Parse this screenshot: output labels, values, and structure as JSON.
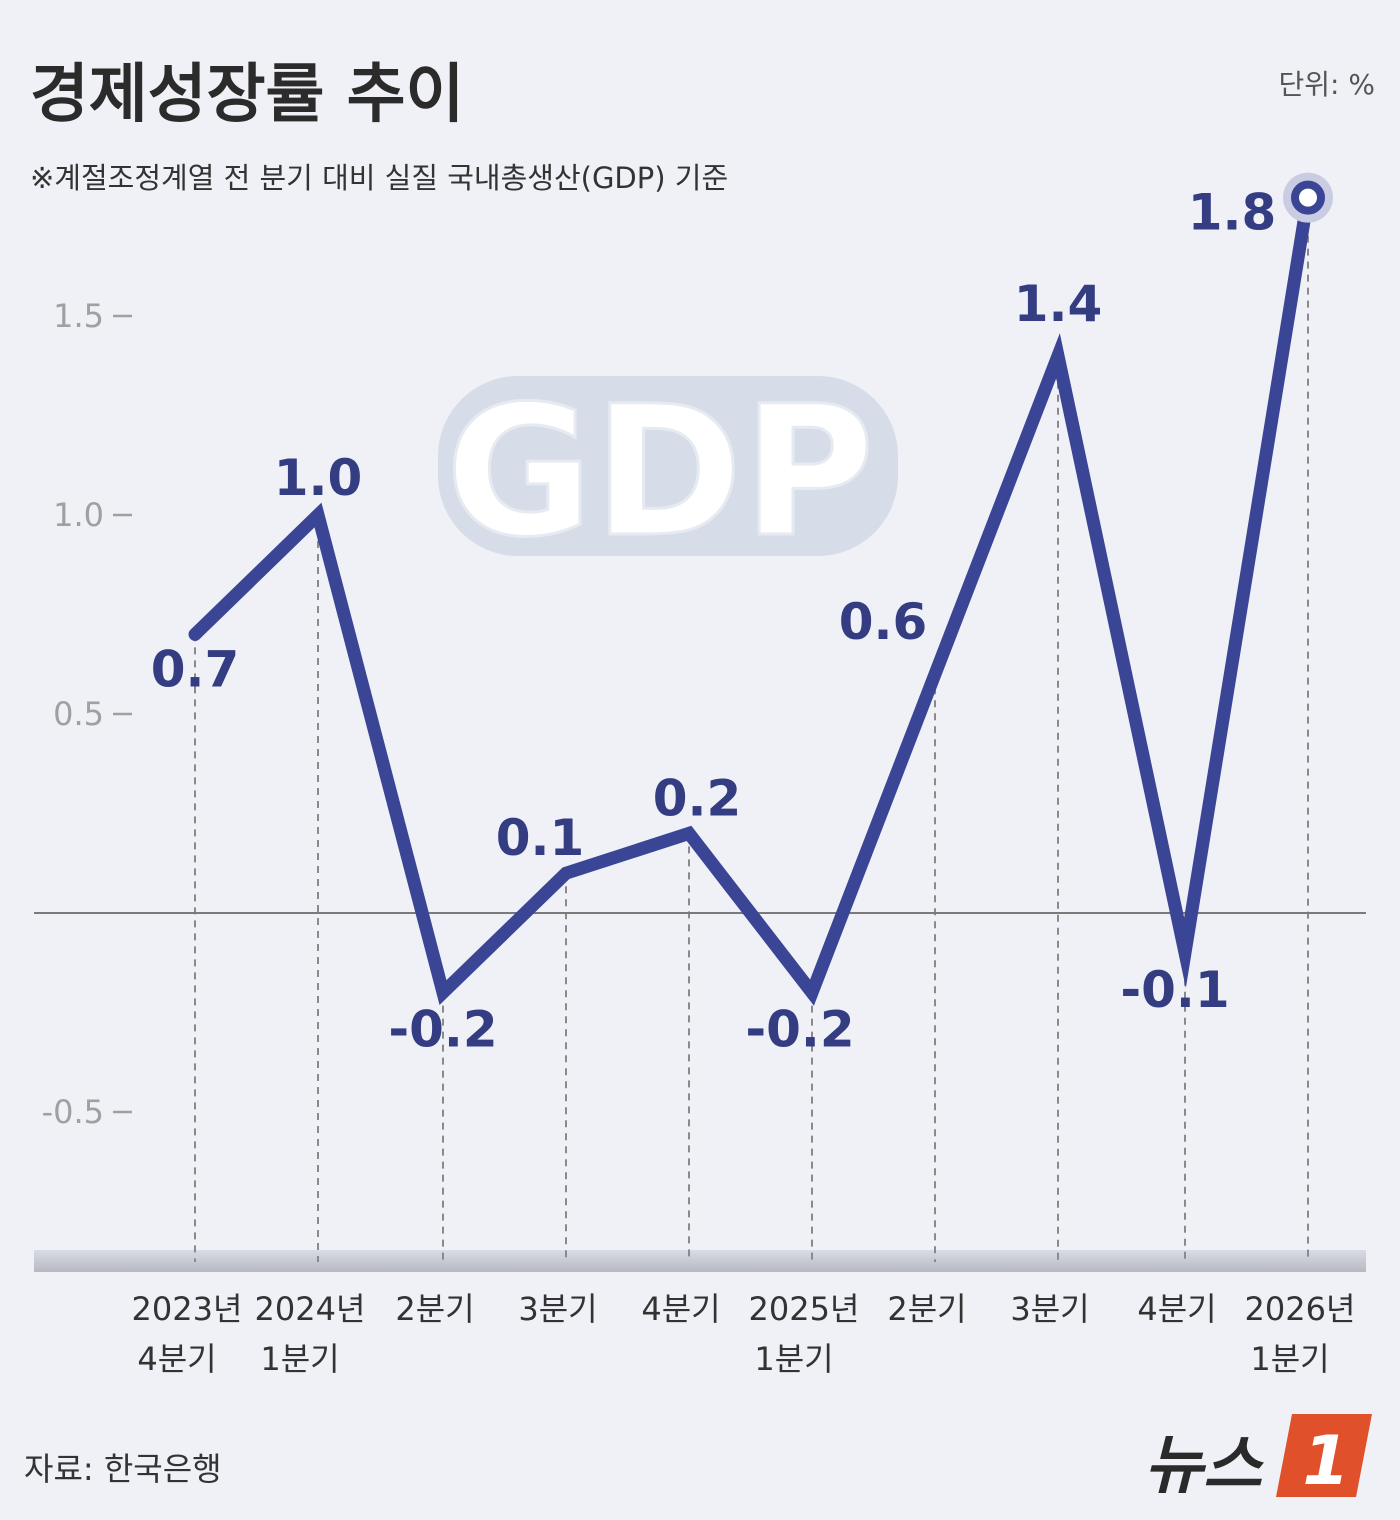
{
  "header": {
    "title": "경제성장률 추이",
    "subtitle": "※계절조정계열 전 분기 대비 실질 국내총생산(GDP) 기준",
    "unit": "단위: %"
  },
  "footer": {
    "source": "자료: 한국은행"
  },
  "watermark": {
    "text": "GDP"
  },
  "logo": {
    "word": "뉴스",
    "num": "1",
    "color": "#e0502a"
  },
  "colors": {
    "line": "#3a4595",
    "label": "#343c82",
    "zero_line": "#7a7a7a",
    "guide": "#8a8a8a",
    "axis_tick": "#a0a0a0",
    "background": "#eff1f6"
  },
  "chart_data": {
    "type": "line",
    "categories": [
      [
        "2023년",
        "4분기"
      ],
      [
        "2024년",
        "1분기"
      ],
      [
        "2분기"
      ],
      [
        "3분기"
      ],
      [
        "4분기"
      ],
      [
        "2025년",
        "1분기"
      ],
      [
        "2분기"
      ],
      [
        "3분기"
      ],
      [
        "4분기"
      ],
      [
        "2026년",
        "1분기"
      ]
    ],
    "values": [
      0.7,
      1.0,
      -0.2,
      0.1,
      0.2,
      -0.2,
      0.6,
      1.4,
      -0.1,
      1.8
    ],
    "value_labels": [
      "0.7",
      "1.0",
      "-0.2",
      "0.1",
      "0.2",
      "-0.2",
      "0.6",
      "1.4",
      "-0.1",
      "1.8"
    ],
    "yticks": [
      1.5,
      1.0,
      0.5,
      -0.5
    ],
    "ytick_labels": [
      "1.5",
      "1.0",
      "0.5",
      "-0.5"
    ],
    "ylim": [
      -0.9,
      1.8
    ],
    "zero_line": true,
    "vertical_guides": true,
    "highlight_last": true
  }
}
